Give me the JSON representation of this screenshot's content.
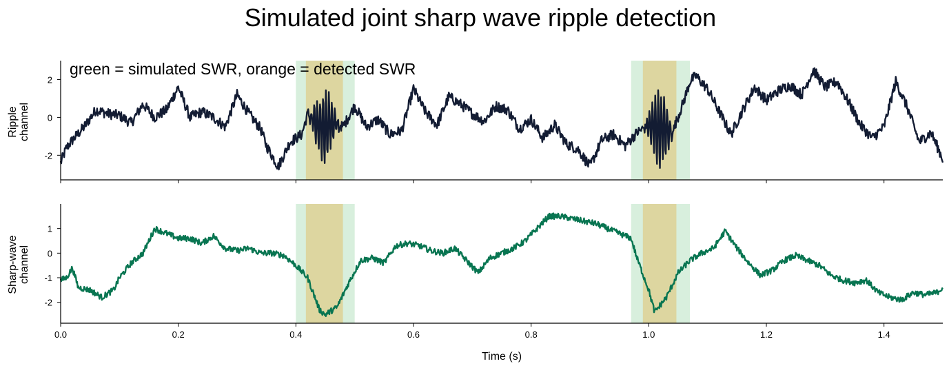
{
  "figure": {
    "title": "Simulated joint sharp wave ripple detection",
    "annotation": "green = simulated SWR, orange = detected SWR",
    "xlabel": "Time (s)"
  },
  "colors": {
    "ripple": "#131c33",
    "sharpwave": "#087551",
    "simulated": "#d8efdd",
    "detected": "#ddd6a0"
  },
  "chart_data": [
    {
      "type": "line",
      "panel": "top",
      "ylabel_line1": "Ripple",
      "ylabel_line2": "channel",
      "xlim": [
        0.0,
        1.5
      ],
      "ylim": [
        -3.3,
        3.0
      ],
      "yticks": [
        "2",
        "0",
        "-2"
      ],
      "yticks_values": [
        2,
        0,
        -2
      ],
      "xticks_values": [
        0.0,
        0.2,
        0.4,
        0.6,
        0.8,
        1.0,
        1.2,
        1.4
      ],
      "xtick_labels_shown": false,
      "simulated_swr": [
        [
          0.4,
          0.5
        ],
        [
          0.97,
          1.07
        ]
      ],
      "detected_swr": [
        [
          0.417,
          0.48
        ],
        [
          0.99,
          1.047
        ]
      ],
      "series": [
        {
          "x": [
            0.0,
            0.01,
            0.02,
            0.04,
            0.06,
            0.08,
            0.1,
            0.12,
            0.14,
            0.16,
            0.18,
            0.2,
            0.22,
            0.24,
            0.26,
            0.28,
            0.3,
            0.32,
            0.34,
            0.35,
            0.37,
            0.39,
            0.41,
            0.42,
            0.44,
            0.46,
            0.48,
            0.5,
            0.52,
            0.54,
            0.56,
            0.58,
            0.6,
            0.62,
            0.64,
            0.66,
            0.68,
            0.7,
            0.72,
            0.74,
            0.76,
            0.78,
            0.8,
            0.82,
            0.84,
            0.86,
            0.88,
            0.9,
            0.92,
            0.94,
            0.96,
            0.98,
            1.0,
            1.02,
            1.04,
            1.06,
            1.07,
            1.08,
            1.1,
            1.12,
            1.14,
            1.16,
            1.18,
            1.2,
            1.22,
            1.24,
            1.26,
            1.28,
            1.3,
            1.32,
            1.34,
            1.36,
            1.38,
            1.4,
            1.42,
            1.44,
            1.46,
            1.48,
            1.5
          ],
          "values": [
            -2.4,
            -1.6,
            -1.2,
            -0.5,
            0.4,
            0.2,
            0.1,
            -0.3,
            0.7,
            0.0,
            0.4,
            1.6,
            0.0,
            0.3,
            0.0,
            -0.5,
            1.2,
            0.2,
            -0.6,
            -1.5,
            -2.6,
            -1.3,
            -0.9,
            0.2,
            -0.6,
            -0.3,
            -0.5,
            0.6,
            -0.5,
            -0.1,
            -0.9,
            -0.7,
            1.5,
            0.3,
            -0.4,
            1.1,
            0.7,
            0.2,
            -0.2,
            0.6,
            0.4,
            -0.6,
            -0.1,
            -1.1,
            -0.4,
            -1.4,
            -1.7,
            -2.6,
            -1.2,
            -0.9,
            -1.5,
            -0.8,
            -0.4,
            -0.6,
            -0.8,
            0.9,
            1.9,
            2.2,
            1.5,
            0.3,
            -0.9,
            0.4,
            1.6,
            0.9,
            1.4,
            1.7,
            1.2,
            2.5,
            1.6,
            1.9,
            0.8,
            -0.4,
            -1.1,
            -0.5,
            1.9,
            0.5,
            -1.3,
            -0.8,
            -2.2
          ],
          "ripple_bursts": [
            [
              0.417,
              0.48,
              1.8
            ],
            [
              0.99,
              1.047,
              1.9
            ]
          ]
        }
      ]
    },
    {
      "type": "line",
      "panel": "bottom",
      "ylabel_line1": "Sharp-wave",
      "ylabel_line2": "channel",
      "xlim": [
        0.0,
        1.5
      ],
      "ylim": [
        -2.85,
        2.0
      ],
      "yticks": [
        "1",
        "0",
        "-1",
        "-2"
      ],
      "yticks_values": [
        1,
        0,
        -1,
        -2
      ],
      "xticks": [
        "0.0",
        "0.2",
        "0.4",
        "0.6",
        "0.8",
        "1.0",
        "1.2",
        "1.4"
      ],
      "xticks_values": [
        0.0,
        0.2,
        0.4,
        0.6,
        0.8,
        1.0,
        1.2,
        1.4
      ],
      "simulated_swr": [
        [
          0.4,
          0.5
        ],
        [
          0.97,
          1.07
        ]
      ],
      "detected_swr": [
        [
          0.417,
          0.48
        ],
        [
          0.99,
          1.047
        ]
      ],
      "series": [
        {
          "x": [
            0.0,
            0.01,
            0.02,
            0.03,
            0.05,
            0.07,
            0.09,
            0.1,
            0.12,
            0.14,
            0.16,
            0.18,
            0.2,
            0.22,
            0.24,
            0.26,
            0.28,
            0.3,
            0.32,
            0.34,
            0.36,
            0.38,
            0.4,
            0.42,
            0.44,
            0.45,
            0.47,
            0.49,
            0.51,
            0.53,
            0.55,
            0.57,
            0.59,
            0.61,
            0.63,
            0.65,
            0.67,
            0.69,
            0.71,
            0.73,
            0.75,
            0.77,
            0.79,
            0.81,
            0.83,
            0.85,
            0.87,
            0.89,
            0.91,
            0.93,
            0.95,
            0.97,
            0.98,
            1.0,
            1.01,
            1.03,
            1.05,
            1.07,
            1.09,
            1.11,
            1.13,
            1.15,
            1.17,
            1.19,
            1.21,
            1.23,
            1.25,
            1.27,
            1.29,
            1.31,
            1.33,
            1.35,
            1.37,
            1.39,
            1.41,
            1.43,
            1.45,
            1.47,
            1.49,
            1.5
          ],
          "values": [
            -1.1,
            -1.0,
            -0.6,
            -1.4,
            -1.5,
            -1.8,
            -1.5,
            -1.0,
            -0.4,
            0.0,
            1.0,
            0.8,
            0.6,
            0.6,
            0.4,
            0.7,
            0.2,
            0.1,
            0.2,
            0.0,
            0.0,
            -0.1,
            -0.5,
            -1.0,
            -2.3,
            -2.5,
            -2.2,
            -1.2,
            -0.3,
            -0.2,
            -0.4,
            0.3,
            0.4,
            0.3,
            0.1,
            0.0,
            0.2,
            -0.3,
            -0.8,
            -0.2,
            0.0,
            0.2,
            0.5,
            1.0,
            1.5,
            1.5,
            1.4,
            1.3,
            1.2,
            1.0,
            0.8,
            0.6,
            -0.2,
            -1.5,
            -2.4,
            -1.8,
            -0.8,
            -0.3,
            0.0,
            0.2,
            0.9,
            0.2,
            -0.4,
            -0.9,
            -0.7,
            -0.3,
            -0.1,
            -0.3,
            -0.5,
            -0.9,
            -1.1,
            -1.2,
            -1.1,
            -1.6,
            -1.8,
            -1.9,
            -1.6,
            -1.7,
            -1.6,
            -1.4
          ]
        }
      ]
    }
  ]
}
